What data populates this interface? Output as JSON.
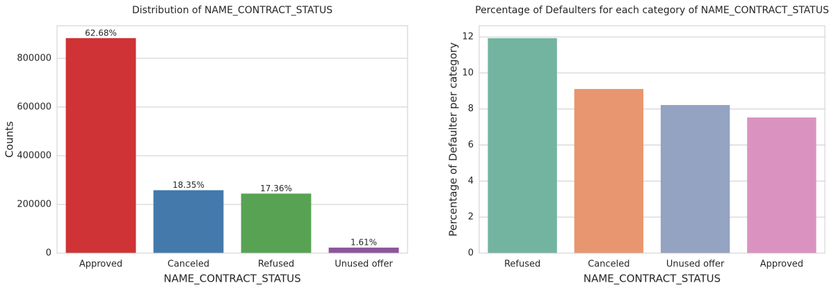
{
  "chart_data": [
    {
      "type": "bar",
      "title": "Distribution of NAME_CONTRACT_STATUS",
      "xlabel": "NAME_CONTRACT_STATUS",
      "ylabel": "Counts",
      "categories": [
        "Approved",
        "Canceled",
        "Refused",
        "Unused offer"
      ],
      "values": [
        883200,
        258500,
        244600,
        22700
      ],
      "bar_labels": [
        "62.68%",
        "18.35%",
        "17.36%",
        "1.61%"
      ],
      "colors": [
        "#cf3335",
        "#4379ab",
        "#58a353",
        "#8d559b"
      ],
      "ylim": [
        0,
        934000
      ],
      "yticks": [
        0,
        200000,
        400000,
        600000,
        800000
      ],
      "grid": true
    },
    {
      "type": "bar",
      "title": "Percentage of Defaulters for each category of NAME_CONTRACT_STATUS",
      "xlabel": "NAME_CONTRACT_STATUS",
      "ylabel": "Percentage of Defaulter per category",
      "categories": [
        "Refused",
        "Canceled",
        "Unused offer",
        "Approved"
      ],
      "values": [
        11.93,
        9.11,
        8.22,
        7.53
      ],
      "colors": [
        "#73b4a1",
        "#e8966f",
        "#95a3c3",
        "#da93c0"
      ],
      "ylim": [
        0,
        12.62
      ],
      "yticks": [
        0,
        2,
        4,
        6,
        8,
        10,
        12
      ],
      "grid": true
    }
  ]
}
